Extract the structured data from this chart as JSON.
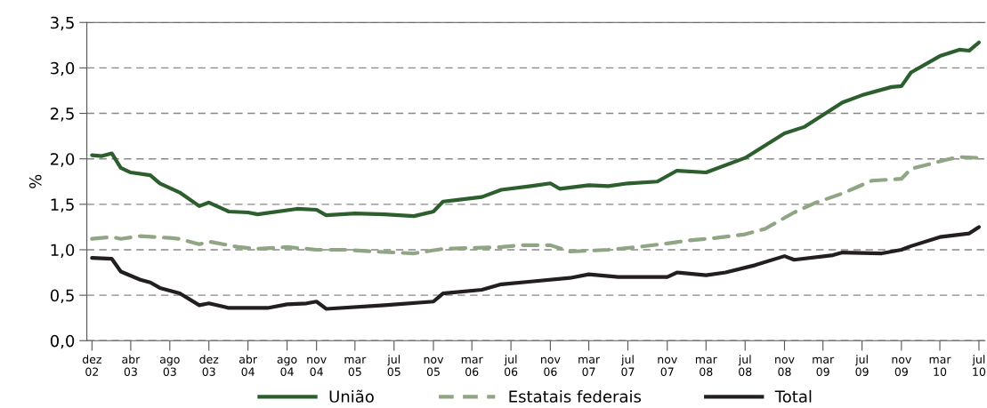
{
  "chart_data": {
    "type": "line",
    "ylabel": "%",
    "ylim": [
      0,
      3.5
    ],
    "yticks": [
      {
        "value": 0,
        "label": "0,0"
      },
      {
        "value": 0.5,
        "label": "0,5"
      },
      {
        "value": 1.0,
        "label": "1,0"
      },
      {
        "value": 1.5,
        "label": "1,5"
      },
      {
        "value": 2.0,
        "label": "2,0"
      },
      {
        "value": 2.5,
        "label": "2,5"
      },
      {
        "value": 3.0,
        "label": "3,0"
      },
      {
        "value": 3.5,
        "label": "3,5"
      }
    ],
    "xlim": [
      "2002-11-15",
      "2010-07-20"
    ],
    "xticks": [
      {
        "value": "2002-12",
        "label": "dez\n02"
      },
      {
        "value": "2003-04",
        "label": "abr\n03"
      },
      {
        "value": "2003-08",
        "label": "ago\n03"
      },
      {
        "value": "2003-12",
        "label": "dez\n03"
      },
      {
        "value": "2004-04",
        "label": "abr\n04"
      },
      {
        "value": "2004-08",
        "label": "ago\n04"
      },
      {
        "value": "2004-11",
        "label": "nov\n04"
      },
      {
        "value": "2005-03",
        "label": "mar\n05"
      },
      {
        "value": "2005-07",
        "label": "jul\n05"
      },
      {
        "value": "2005-11",
        "label": "nov\n05"
      },
      {
        "value": "2006-03",
        "label": "mar\n06"
      },
      {
        "value": "2006-07",
        "label": "jul\n06"
      },
      {
        "value": "2006-11",
        "label": "nov\n06"
      },
      {
        "value": "2007-03",
        "label": "mar\n07"
      },
      {
        "value": "2007-07",
        "label": "jul\n07"
      },
      {
        "value": "2007-11",
        "label": "nov\n07"
      },
      {
        "value": "2008-03",
        "label": "mar\n08"
      },
      {
        "value": "2008-07",
        "label": "jul\n08"
      },
      {
        "value": "2008-11",
        "label": "nov\n08"
      },
      {
        "value": "2009-03",
        "label": "mar\n09"
      },
      {
        "value": "2009-07",
        "label": "jul\n09"
      },
      {
        "value": "2009-11",
        "label": "nov\n09"
      },
      {
        "value": "2010-03",
        "label": "mar\n10"
      },
      {
        "value": "2010-07",
        "label": "jul\n10"
      }
    ],
    "grid": "y",
    "legend": "bottom",
    "marker": "none",
    "series": [
      {
        "name": "União",
        "color": "#2d5e2e",
        "line_style": "solid",
        "x": [
          "2002-12",
          "2003-01",
          "2003-02",
          "2003-03",
          "2003-04",
          "2003-06",
          "2003-07",
          "2003-09",
          "2003-11",
          "2003-12",
          "2004-02",
          "2004-04",
          "2004-05",
          "2004-09",
          "2004-11",
          "2004-12",
          "2005-03",
          "2005-06",
          "2005-09",
          "2005-11",
          "2005-12",
          "2006-04",
          "2006-06",
          "2006-09",
          "2006-11",
          "2006-12",
          "2007-03",
          "2007-05",
          "2007-07",
          "2007-10",
          "2007-12",
          "2008-03",
          "2008-07",
          "2008-11",
          "2009-01",
          "2009-05",
          "2009-07",
          "2009-10",
          "2009-11",
          "2009-12",
          "2010-03",
          "2010-05",
          "2010-06",
          "2010-07"
        ],
        "values": [
          2.04,
          2.03,
          2.06,
          1.9,
          1.85,
          1.82,
          1.73,
          1.63,
          1.48,
          1.52,
          1.42,
          1.41,
          1.39,
          1.45,
          1.44,
          1.38,
          1.4,
          1.39,
          1.37,
          1.42,
          1.53,
          1.58,
          1.66,
          1.7,
          1.73,
          1.67,
          1.71,
          1.7,
          1.73,
          1.75,
          1.87,
          1.85,
          2.01,
          2.28,
          2.35,
          2.62,
          2.7,
          2.79,
          2.8,
          2.95,
          3.13,
          3.2,
          3.19,
          3.28
        ]
      },
      {
        "name": "Estatais federais",
        "color": "#8fa583",
        "line_style": "dashed",
        "x": [
          "2002-12",
          "2003-02",
          "2003-03",
          "2003-05",
          "2003-08",
          "2003-09",
          "2003-11",
          "2003-12",
          "2004-03",
          "2004-05",
          "2004-08",
          "2004-11",
          "2005-02",
          "2005-05",
          "2005-09",
          "2005-12",
          "2006-06",
          "2006-08",
          "2006-11",
          "2007-01",
          "2007-05",
          "2007-08",
          "2007-11",
          "2008-01",
          "2008-04",
          "2008-07",
          "2008-09",
          "2008-12",
          "2009-02",
          "2009-05",
          "2009-08",
          "2009-11",
          "2009-12",
          "2010-04",
          "2010-05",
          "2010-07"
        ],
        "values": [
          1.12,
          1.14,
          1.12,
          1.15,
          1.13,
          1.12,
          1.06,
          1.09,
          1.03,
          1.01,
          1.03,
          1.0,
          1.0,
          0.98,
          0.96,
          1.01,
          1.03,
          1.05,
          1.05,
          0.98,
          1.0,
          1.03,
          1.07,
          1.1,
          1.13,
          1.17,
          1.23,
          1.41,
          1.51,
          1.62,
          1.76,
          1.78,
          1.89,
          2.0,
          2.02,
          2.01
        ]
      },
      {
        "name": "Total",
        "color": "#231f20",
        "line_style": "solid",
        "x": [
          "2002-12",
          "2003-02",
          "2003-03",
          "2003-05",
          "2003-06",
          "2003-07",
          "2003-09",
          "2003-11",
          "2003-12",
          "2004-02",
          "2004-06",
          "2004-08",
          "2004-10",
          "2004-11",
          "2004-12",
          "2005-06",
          "2005-11",
          "2005-12",
          "2006-04",
          "2006-06",
          "2006-09",
          "2007-01",
          "2007-03",
          "2007-06",
          "2007-11",
          "2007-12",
          "2008-03",
          "2008-05",
          "2008-08",
          "2008-11",
          "2008-12",
          "2009-04",
          "2009-05",
          "2009-09",
          "2009-11",
          "2009-12",
          "2010-03",
          "2010-06",
          "2010-07"
        ],
        "values": [
          0.91,
          0.9,
          0.76,
          0.67,
          0.64,
          0.58,
          0.52,
          0.39,
          0.41,
          0.36,
          0.36,
          0.4,
          0.41,
          0.43,
          0.35,
          0.39,
          0.43,
          0.52,
          0.56,
          0.62,
          0.65,
          0.69,
          0.73,
          0.7,
          0.7,
          0.75,
          0.72,
          0.75,
          0.83,
          0.93,
          0.89,
          0.94,
          0.97,
          0.96,
          1.0,
          1.04,
          1.14,
          1.18,
          1.25
        ]
      }
    ]
  }
}
